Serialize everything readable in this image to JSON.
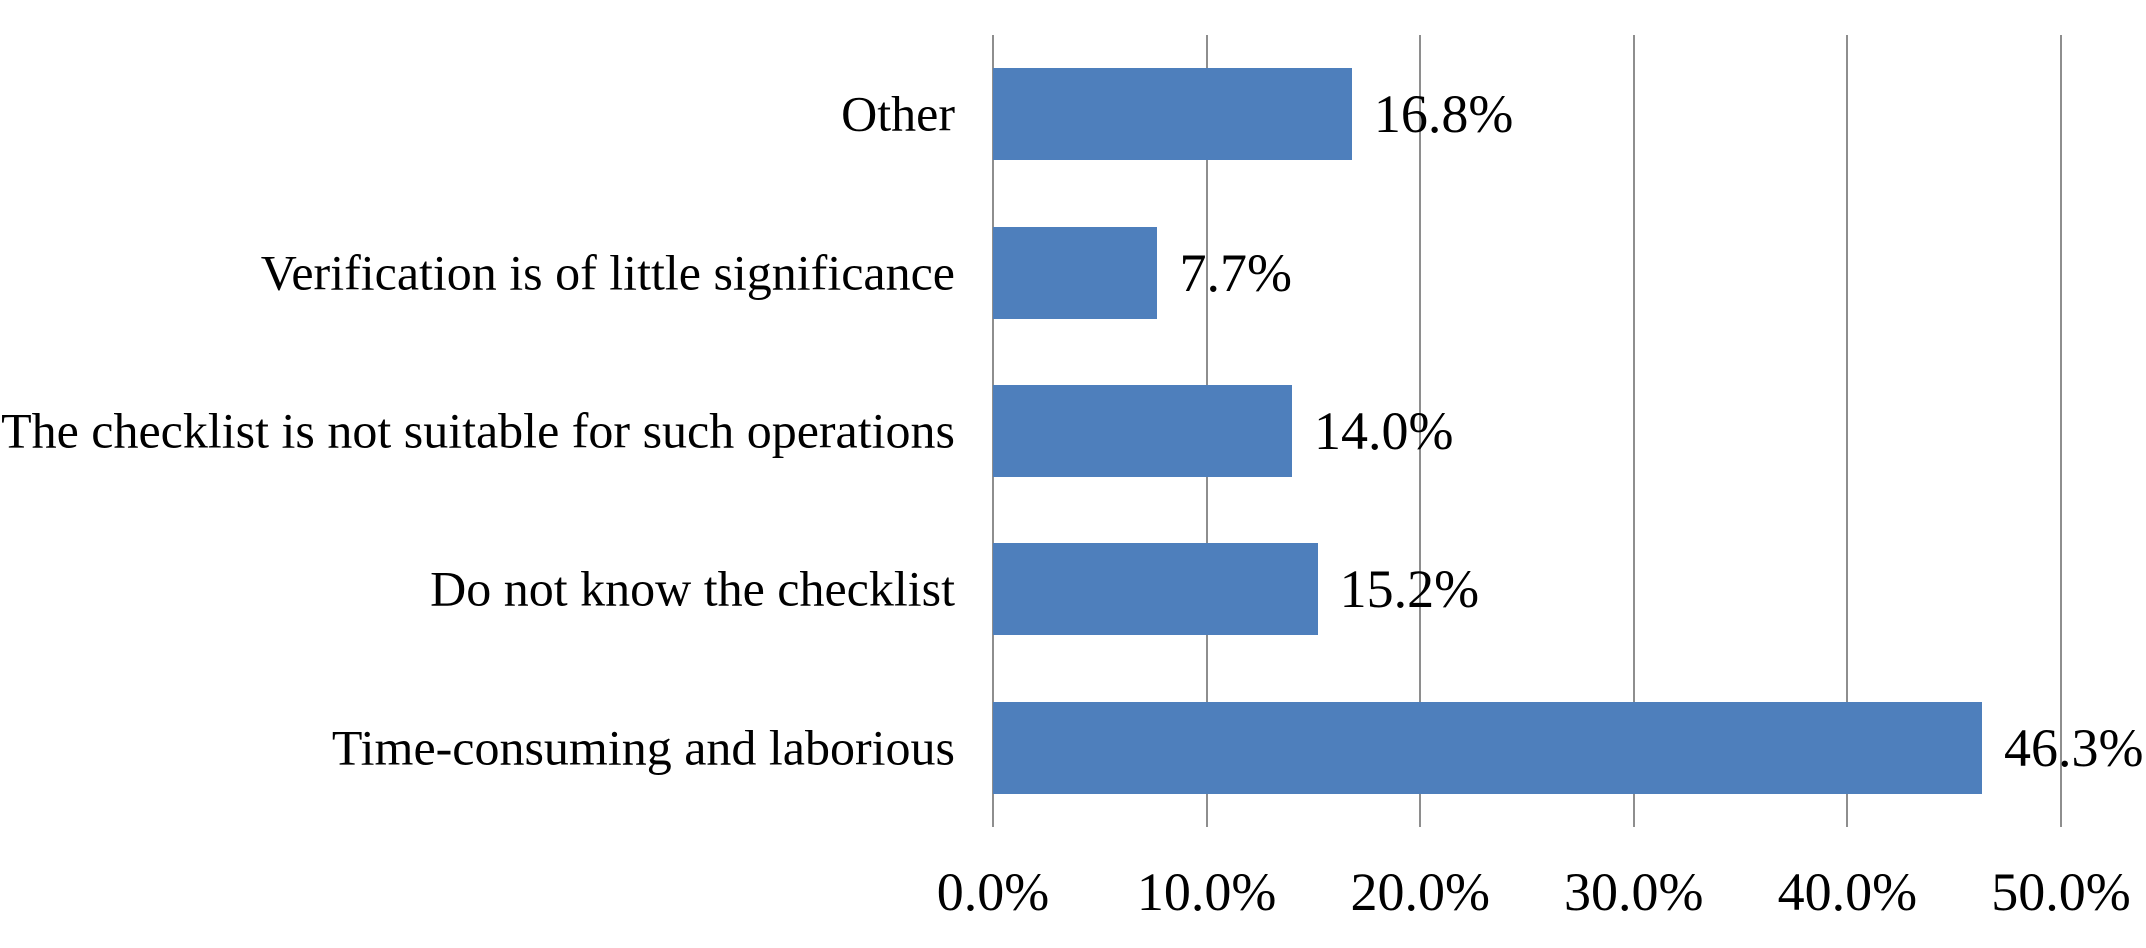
{
  "chart_data": {
    "type": "bar",
    "orientation": "horizontal",
    "title": "",
    "categories": [
      "Other",
      "Verification is of little significance",
      "The checklist is not suitable for such operations",
      "Do not know the checklist",
      "Time-consuming and laborious"
    ],
    "values": [
      16.8,
      7.7,
      14.0,
      15.2,
      46.3
    ],
    "value_labels": [
      "16.8%",
      "7.7%",
      "14.0%",
      "15.2%",
      "46.3%"
    ],
    "x_ticks": [
      "0.0%",
      "10.0%",
      "20.0%",
      "30.0%",
      "40.0%",
      "50.0%"
    ],
    "x_tick_values": [
      0,
      10,
      20,
      30,
      40,
      50
    ],
    "xlim": [
      0,
      50
    ],
    "grid": true,
    "legend": false,
    "bar_color": "#4E7FBC",
    "gridline_color": "#8E8E8E",
    "text_color": "#000000",
    "background_color": "#FFFFFF"
  }
}
